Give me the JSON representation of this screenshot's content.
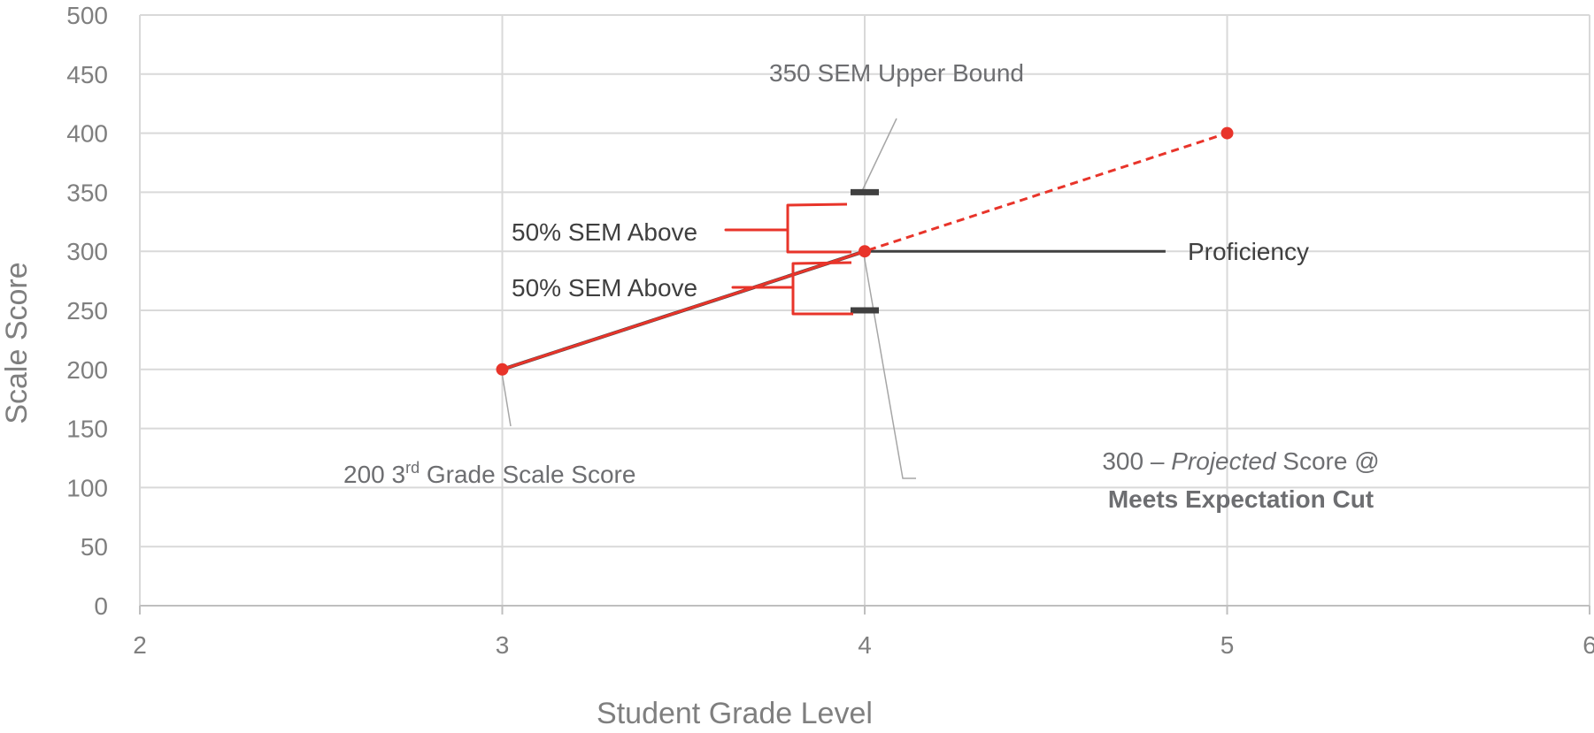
{
  "chart_data": {
    "type": "line",
    "xlabel": "Student Grade Level",
    "ylabel": "Scale Score",
    "xlim": [
      2,
      6
    ],
    "ylim": [
      0,
      500
    ],
    "x_ticks": [
      2,
      3,
      4,
      5,
      6
    ],
    "y_ticks": [
      0,
      50,
      100,
      150,
      200,
      250,
      300,
      350,
      400,
      450,
      500
    ],
    "grid": true,
    "series": [
      {
        "points": [
          [
            3,
            200
          ],
          [
            4,
            300
          ]
        ],
        "style": "solid",
        "color": "#e8342a"
      },
      {
        "points": [
          [
            3,
            200
          ],
          [
            4,
            300
          ],
          [
            5,
            400
          ]
        ],
        "style": "dashed",
        "color": "#e8342a"
      }
    ],
    "proficiency": {
      "y": 300,
      "x_start": 4,
      "x_end": 4.83,
      "label": "Proficiency",
      "color": "#404040"
    },
    "sem_bounds": [
      {
        "x": 4,
        "y": 350
      },
      {
        "x": 4,
        "y": 250
      }
    ],
    "annotations": {
      "upper_bound": "350 SEM Upper Bound",
      "sem_above_1": "50% SEM Above",
      "sem_above_2": "50% SEM Above",
      "third_grade": {
        "prefix": "200 3",
        "sup": "rd",
        "suffix": " Grade Scale Score"
      },
      "projected_line1_a": "300 – ",
      "projected_line1_em": "Projected",
      "projected_line1_b": " Score @",
      "projected_line2": "Meets Expectation Cut"
    },
    "colors": {
      "accent": "#e8342a",
      "dark": "#404040",
      "grid": "#d9d9d9",
      "text": "#7f7f7f"
    }
  }
}
